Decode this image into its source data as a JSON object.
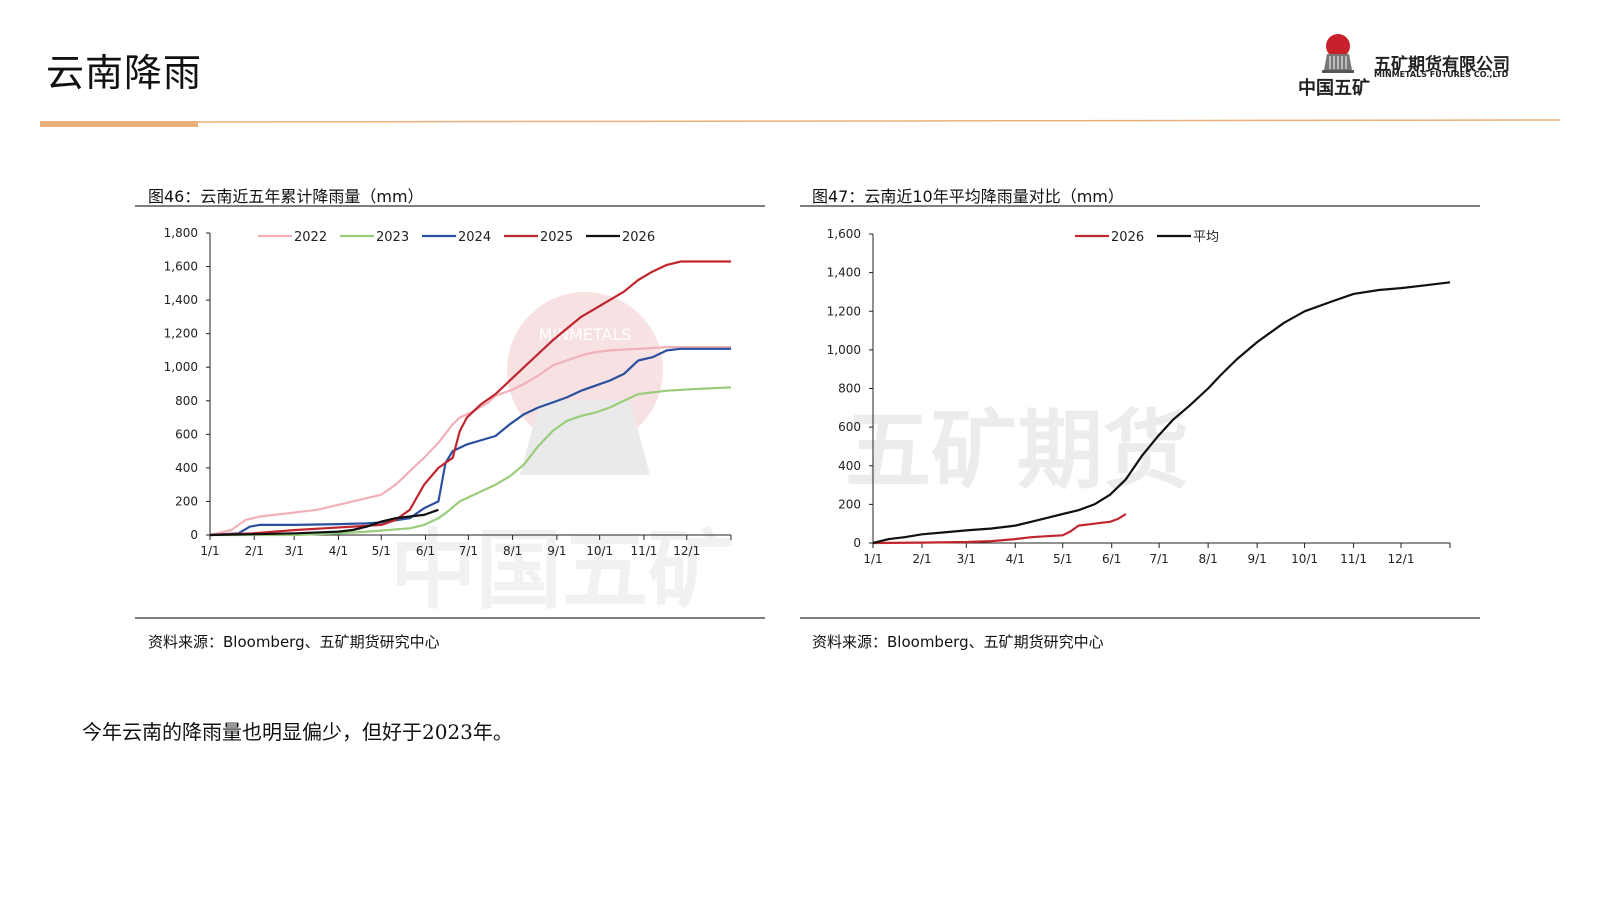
{
  "page": {
    "title": "云南降雨",
    "conclusion": "今年云南的降雨量也明显偏少，但好于2023年。"
  },
  "brand": {
    "cn_name": "五矿期货有限公司",
    "en_name": "MINMETALS FUTURES CO.,LTD",
    "logo_text": "中国五矿",
    "seal_text": "MINMETALS",
    "watermark_cn": "五矿期货",
    "watermark_logo": "中国五矿",
    "accent_color": "#e8b07a",
    "accent_dark": "#d9843e",
    "logo_red": "#c8202a"
  },
  "figures": {
    "left": {
      "title": "图46：云南近五年累计降雨量（mm）",
      "source": "资料来源：Bloomberg、五矿期货研究中心"
    },
    "right": {
      "title": "图47：云南近10年平均降雨量对比（mm）",
      "source": "资料来源：Bloomberg、五矿期货研究中心"
    }
  },
  "chart_data": [
    {
      "type": "line",
      "title": "图46：云南近五年累计降雨量（mm）",
      "xlabel": "",
      "ylabel": "",
      "x_ticks": [
        "1/1",
        "2/1",
        "3/1",
        "4/1",
        "5/1",
        "6/1",
        "7/1",
        "8/1",
        "9/1",
        "10/1",
        "11/1",
        "12/1"
      ],
      "x_unit": "day_of_year",
      "x_tick_days": [
        0,
        31,
        59,
        90,
        120,
        151,
        181,
        212,
        243,
        273,
        304,
        334
      ],
      "xlim": [
        0,
        365
      ],
      "ylim": [
        0,
        1800
      ],
      "y_ticks": [
        0,
        200,
        400,
        600,
        800,
        1000,
        1200,
        1400,
        1600,
        1800
      ],
      "y_tick_labels": [
        "0",
        "200",
        "400",
        "600",
        "800",
        "1,000",
        "1,200",
        "1,400",
        "1,600",
        "1,800"
      ],
      "grid": false,
      "legend_position": "top",
      "series": [
        {
          "name": "2022",
          "color": "#f2b0b8",
          "x": [
            0,
            15,
            25,
            35,
            55,
            75,
            90,
            100,
            110,
            120,
            130,
            140,
            150,
            160,
            170,
            175,
            185,
            195,
            200,
            210,
            220,
            230,
            240,
            250,
            260,
            270,
            280,
            300,
            320,
            340,
            365
          ],
          "y": [
            0,
            30,
            90,
            110,
            130,
            150,
            180,
            200,
            220,
            240,
            300,
            380,
            460,
            550,
            660,
            700,
            740,
            790,
            830,
            860,
            900,
            950,
            1010,
            1040,
            1070,
            1090,
            1100,
            1110,
            1120,
            1120,
            1120
          ]
        },
        {
          "name": "2023",
          "color": "#9acd7a",
          "x": [
            0,
            60,
            90,
            110,
            125,
            140,
            150,
            160,
            165,
            175,
            190,
            200,
            210,
            220,
            230,
            240,
            250,
            260,
            270,
            280,
            290,
            300,
            320,
            340,
            365
          ],
          "y": [
            0,
            0,
            10,
            20,
            30,
            40,
            60,
            100,
            130,
            200,
            260,
            300,
            350,
            420,
            530,
            620,
            680,
            710,
            730,
            760,
            800,
            840,
            860,
            870,
            880
          ]
        },
        {
          "name": "2024",
          "color": "#2c4f9e",
          "x": [
            0,
            20,
            28,
            35,
            60,
            90,
            110,
            120,
            140,
            150,
            160,
            165,
            170,
            180,
            200,
            210,
            220,
            230,
            240,
            250,
            260,
            270,
            280,
            290,
            300,
            310,
            320,
            330,
            340,
            365
          ],
          "y": [
            0,
            10,
            50,
            60,
            60,
            65,
            70,
            75,
            100,
            160,
            200,
            430,
            500,
            540,
            590,
            660,
            720,
            760,
            790,
            820,
            860,
            890,
            920,
            960,
            1040,
            1060,
            1100,
            1110,
            1110,
            1110
          ]
        },
        {
          "name": "2025",
          "color": "#c0262e",
          "x": [
            0,
            30,
            60,
            80,
            100,
            120,
            130,
            140,
            150,
            160,
            170,
            175,
            180,
            190,
            200,
            210,
            220,
            230,
            240,
            250,
            260,
            270,
            280,
            290,
            300,
            310,
            320,
            330,
            340,
            365
          ],
          "y": [
            0,
            10,
            30,
            40,
            50,
            60,
            90,
            150,
            300,
            400,
            460,
            620,
            700,
            780,
            840,
            920,
            1000,
            1080,
            1160,
            1230,
            1300,
            1350,
            1400,
            1450,
            1520,
            1570,
            1610,
            1630,
            1630,
            1630
          ]
        },
        {
          "name": "2026",
          "color": "#111111",
          "x": [
            0,
            30,
            60,
            90,
            100,
            110,
            120,
            130,
            140,
            150,
            160
          ],
          "y": [
            0,
            5,
            10,
            20,
            30,
            50,
            80,
            100,
            110,
            120,
            150
          ]
        }
      ]
    },
    {
      "type": "line",
      "title": "图47：云南近10年平均降雨量对比（mm）",
      "xlabel": "",
      "ylabel": "",
      "x_ticks": [
        "1/1",
        "2/1",
        "3/1",
        "4/1",
        "5/1",
        "6/1",
        "7/1",
        "8/1",
        "9/1",
        "10/1",
        "11/1",
        "12/1"
      ],
      "x_unit": "day_of_year",
      "x_tick_days": [
        0,
        31,
        59,
        90,
        120,
        151,
        181,
        212,
        243,
        273,
        304,
        334
      ],
      "xlim": [
        0,
        365
      ],
      "ylim": [
        0,
        1600
      ],
      "y_ticks": [
        0,
        200,
        400,
        600,
        800,
        1000,
        1200,
        1400,
        1600
      ],
      "y_tick_labels": [
        "0",
        "200",
        "400",
        "600",
        "800",
        "1,000",
        "1,200",
        "1,400",
        "1,600"
      ],
      "grid": false,
      "legend_position": "top",
      "series": [
        {
          "name": "2026",
          "color": "#c0262e",
          "x": [
            0,
            30,
            60,
            75,
            90,
            100,
            110,
            120,
            125,
            130,
            140,
            145,
            150,
            155,
            160
          ],
          "y": [
            0,
            2,
            5,
            10,
            20,
            30,
            35,
            40,
            60,
            90,
            100,
            105,
            110,
            125,
            150
          ]
        },
        {
          "name": "平均",
          "color": "#111111",
          "x": [
            0,
            10,
            20,
            31,
            45,
            59,
            75,
            90,
            100,
            110,
            120,
            130,
            140,
            150,
            160,
            170,
            180,
            190,
            200,
            212,
            220,
            230,
            243,
            260,
            273,
            290,
            304,
            320,
            334,
            350,
            365
          ],
          "y": [
            0,
            20,
            30,
            45,
            55,
            65,
            75,
            90,
            110,
            130,
            150,
            170,
            200,
            250,
            330,
            450,
            550,
            640,
            710,
            800,
            870,
            950,
            1040,
            1140,
            1200,
            1250,
            1290,
            1310,
            1320,
            1335,
            1350
          ]
        }
      ]
    }
  ]
}
